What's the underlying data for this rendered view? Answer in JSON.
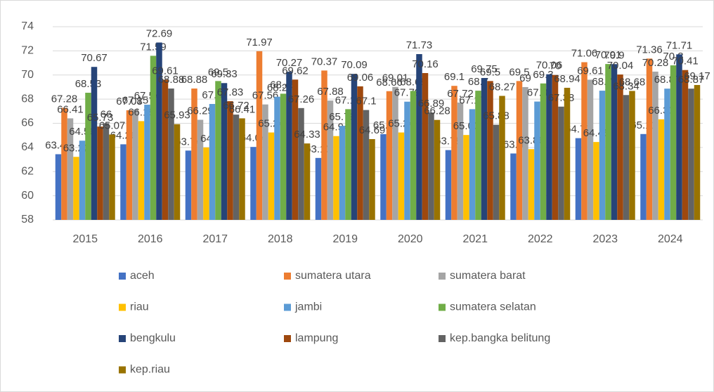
{
  "chart_data": {
    "type": "bar",
    "categories": [
      "2015",
      "2016",
      "2017",
      "2018",
      "2019",
      "2020",
      "2021",
      "2022",
      "2023",
      "2024"
    ],
    "series": [
      {
        "name": "aceh",
        "color": "#4472c4",
        "values": [
          63.44,
          64.26,
          63.74,
          64.04,
          63.13,
          65.1,
          63.78,
          63.5,
          64.77,
          65.11
        ]
      },
      {
        "name": "sumatera utara",
        "color": "#ed7d31",
        "values": [
          67.28,
          67.08,
          68.88,
          71.97,
          70.37,
          68.66,
          69.1,
          69.5,
          71.06,
          71.36
        ]
      },
      {
        "name": "sumatera barat",
        "color": "#a5a5a5",
        "values": [
          66.41,
          67.15,
          66.29,
          67.56,
          67.88,
          69.01,
          67.72,
          69.0,
          69.61,
          70.28
        ]
      },
      {
        "name": "riau",
        "color": "#ffc000",
        "values": [
          63.22,
          66.18,
          64.0,
          65.24,
          64.94,
          65.24,
          65.03,
          63.86,
          64.45,
          66.33
        ]
      },
      {
        "name": "jambi",
        "color": "#5b9bd5",
        "values": [
          64.56,
          67.54,
          67.6,
          68.2,
          65.79,
          67.79,
          67.17,
          67.8,
          68.7,
          68.87
        ]
      },
      {
        "name": "sumatera selatan",
        "color": "#70ad47",
        "values": [
          68.53,
          71.59,
          69.5,
          68.45,
          67.17,
          68.68,
          68.7,
          69.3,
          70.91,
          70.8
        ]
      },
      {
        "name": "bengkulu",
        "color": "#264478",
        "values": [
          70.67,
          72.69,
          69.33,
          70.27,
          70.09,
          71.73,
          69.75,
          70.06,
          70.9,
          71.71
        ]
      },
      {
        "name": "lampung",
        "color": "#9e480e",
        "values": [
          65.73,
          69.61,
          67.83,
          69.62,
          69.06,
          70.16,
          69.5,
          70.0,
          70.04,
          70.41
        ]
      },
      {
        "name": "kep.bangka belitung",
        "color": "#636363",
        "values": [
          66.0,
          68.88,
          66.72,
          67.26,
          67.1,
          66.89,
          65.88,
          67.38,
          68.34,
          68.87
        ]
      },
      {
        "name": "kep.riau",
        "color": "#997300",
        "values": [
          65.07,
          65.93,
          66.41,
          64.33,
          64.69,
          66.28,
          68.27,
          68.94,
          68.68,
          69.17
        ]
      }
    ],
    "ylim": [
      58,
      74
    ],
    "yticks": [
      58,
      60,
      62,
      64,
      66,
      68,
      70,
      72,
      74
    ],
    "grid": true,
    "legend": "bottom"
  }
}
